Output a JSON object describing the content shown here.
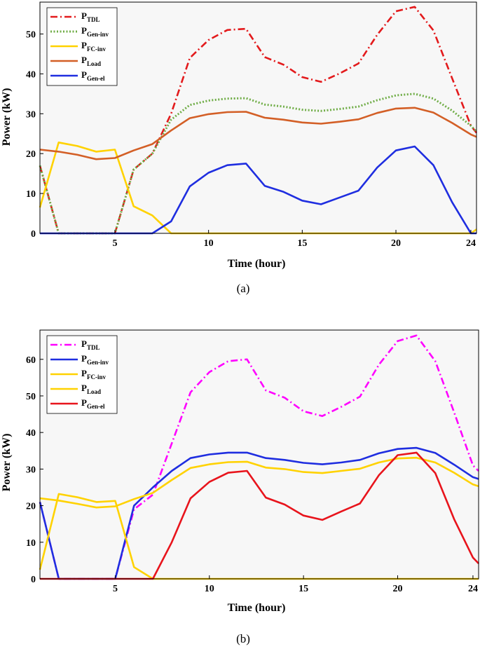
{
  "chart_data": [
    {
      "type": "line",
      "panel_label": "(a)",
      "xlabel": "Time (hour)",
      "ylabel": "Power (kW)",
      "xlim": [
        1,
        24.3
      ],
      "ylim": [
        0,
        58
      ],
      "xticks": [
        5,
        10,
        15,
        20,
        24
      ],
      "yticks": [
        0,
        10,
        20,
        30,
        40,
        50
      ],
      "grid": false,
      "legend_position": "top-left",
      "x": [
        1,
        2,
        3,
        4,
        5,
        6,
        7,
        8,
        9,
        10,
        11,
        12,
        13,
        14,
        15,
        16,
        17,
        18,
        19,
        20,
        21,
        22,
        23,
        24,
        24.3
      ],
      "series": [
        {
          "name": "TDL",
          "legend_main": "P",
          "legend_sub": "TDL",
          "color": "#e31a1c",
          "dash": "dashdot",
          "values": [
            17,
            0,
            0,
            0,
            0,
            16,
            20,
            30,
            44,
            48.5,
            51,
            51.3,
            44.2,
            42.3,
            39.2,
            38,
            40.1,
            42.6,
            49.8,
            55.7,
            56.8,
            50.9,
            38.9,
            27,
            25.2
          ]
        },
        {
          "name": "Gen-inv",
          "legend_main": "P",
          "legend_sub": "Gen-inv",
          "color": "#70ad47",
          "dash": "dotted",
          "values": [
            17,
            0,
            0,
            0,
            0,
            16,
            20,
            28.5,
            32.2,
            33.3,
            33.8,
            33.9,
            32.3,
            31.8,
            31,
            30.7,
            31.2,
            31.8,
            33.4,
            34.6,
            35,
            33.8,
            30.8,
            27,
            25.5
          ]
        },
        {
          "name": "FC-inv",
          "legend_main": "P",
          "legend_sub": "FC-inv",
          "color": "#ffd200",
          "dash": "solid",
          "values": [
            6.5,
            22.8,
            21.9,
            20.5,
            21,
            6.8,
            4.5,
            0,
            0,
            0,
            0,
            0,
            0,
            0,
            0,
            0,
            0,
            0,
            0,
            0,
            0,
            0,
            0,
            0,
            1
          ]
        },
        {
          "name": "Load",
          "legend_main": "P",
          "legend_sub": "Load",
          "color": "#d35f26",
          "dash": "solid",
          "values": [
            21,
            20.5,
            19.7,
            18.6,
            18.9,
            20.8,
            22.4,
            25.8,
            28.9,
            29.9,
            30.4,
            30.5,
            29,
            28.5,
            27.8,
            27.5,
            28,
            28.6,
            30.2,
            31.3,
            31.5,
            30.3,
            27.7,
            24.8,
            24.2
          ]
        },
        {
          "name": "Gen-el",
          "legend_main": "P",
          "legend_sub": "Gen-el",
          "color": "#1f2ee0",
          "dash": "solid",
          "values": [
            0,
            0,
            0,
            0,
            0,
            0,
            0,
            3,
            11.8,
            15.2,
            17.1,
            17.5,
            11.9,
            10.4,
            8.2,
            7.3,
            9,
            10.7,
            16.5,
            20.8,
            21.8,
            17.1,
            7.8,
            0,
            0
          ]
        }
      ]
    },
    {
      "type": "line",
      "panel_label": "(b)",
      "xlabel": "Time (hour)",
      "ylabel": "Power (kW)",
      "xlim": [
        1,
        24.3
      ],
      "ylim": [
        0,
        68
      ],
      "xticks": [
        5,
        10,
        15,
        20,
        24
      ],
      "yticks": [
        0,
        10,
        20,
        30,
        40,
        50,
        60
      ],
      "grid": false,
      "legend_position": "top-left",
      "x": [
        1,
        2,
        3,
        4,
        5,
        6,
        7,
        8,
        9,
        10,
        11,
        12,
        13,
        14,
        15,
        16,
        17,
        18,
        19,
        20,
        21,
        22,
        23,
        24,
        24.3
      ],
      "series": [
        {
          "name": "TDL",
          "legend_main": "P",
          "legend_sub": "TDL",
          "color": "#ff00ff",
          "dash": "dashdot",
          "values": [
            21,
            0,
            0,
            0,
            0,
            19,
            23,
            37,
            51,
            56.5,
            59.5,
            60,
            51.5,
            49.5,
            45.8,
            44.5,
            47,
            49.8,
            58.5,
            65,
            66.5,
            59.5,
            45.5,
            31,
            29.5
          ]
        },
        {
          "name": "Gen-inv",
          "legend_main": "P",
          "legend_sub": "Gen-inv",
          "color": "#1f2ee0",
          "dash": "solid",
          "values": [
            21,
            0,
            0,
            0,
            0,
            20,
            25,
            29.5,
            33,
            34,
            34.5,
            34.5,
            33,
            32.5,
            31.7,
            31.3,
            31.8,
            32.5,
            34.3,
            35.5,
            35.8,
            34.4,
            31.2,
            27.8,
            27.3
          ]
        },
        {
          "name": "FC-inv",
          "legend_main": "P",
          "legend_sub": "FC-inv",
          "color": "#ffd200",
          "dash": "solid",
          "values": [
            2.5,
            23.2,
            22.3,
            21,
            21.3,
            3.2,
            0,
            0,
            0,
            0,
            0,
            0,
            0,
            0,
            0,
            0,
            0,
            0,
            0,
            0,
            0,
            0,
            0,
            0,
            0
          ]
        },
        {
          "name": "Load",
          "legend_main": "P",
          "legend_sub": "Load",
          "color": "#ffd200",
          "dash": "solid",
          "values": [
            22,
            21.4,
            20.5,
            19.5,
            19.8,
            21.8,
            23.5,
            27,
            30.3,
            31.3,
            31.9,
            32,
            30.4,
            30,
            29.2,
            28.9,
            29.5,
            30.1,
            31.8,
            32.9,
            33.1,
            31.8,
            29,
            25.8,
            25.3
          ]
        },
        {
          "name": "Gen-el",
          "legend_main": "P",
          "legend_sub": "Gen-el",
          "color": "#e8141c",
          "dash": "solid",
          "values": [
            0,
            0,
            0,
            0,
            0,
            0,
            0,
            10,
            22,
            26.5,
            29,
            29.5,
            22.2,
            20.3,
            17.3,
            16.1,
            18.4,
            20.6,
            28.3,
            33.8,
            34.5,
            28.9,
            16.3,
            5.8,
            4.2
          ]
        }
      ]
    }
  ]
}
